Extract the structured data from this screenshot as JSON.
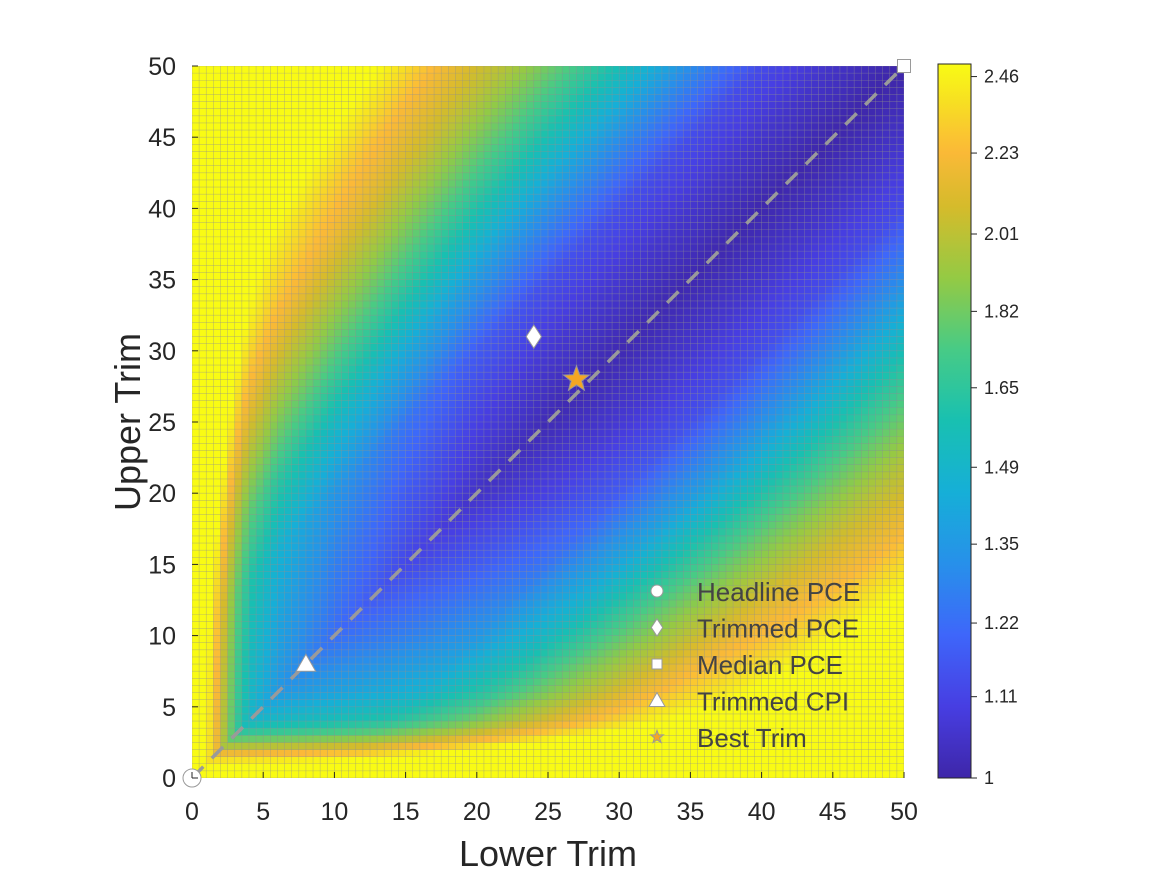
{
  "chart_data": {
    "type": "heatmap",
    "title": "",
    "xlabel": "Lower Trim",
    "ylabel": "Upper Trim",
    "xlim": [
      0,
      50
    ],
    "ylim": [
      0,
      50
    ],
    "x_ticks": [
      "0",
      "5",
      "10",
      "15",
      "20",
      "25",
      "30",
      "35",
      "40",
      "45",
      "50"
    ],
    "y_ticks": [
      "0",
      "5",
      "10",
      "15",
      "20",
      "25",
      "30",
      "35",
      "40",
      "45",
      "50"
    ],
    "grid_resolution": 0.5,
    "colormap": "parula",
    "colorbar": {
      "range": [
        1,
        2.5
      ],
      "ticks": [
        "2.46",
        "2.23",
        "2.01",
        "1.82",
        "1.65",
        "1.49",
        "1.35",
        "1.22",
        "1.11",
        "1"
      ],
      "tick_values": [
        2.46,
        2.23,
        2.01,
        1.82,
        1.65,
        1.49,
        1.35,
        1.22,
        1.11,
        1.0
      ],
      "scale": "log"
    },
    "surface_model": {
      "description": "value ≈ 1 + f(min(lower,upper)) + g(|lower-upper|), saturating at 2.46",
      "min_trim_profile": [
        [
          0,
          2.6
        ],
        [
          1,
          2.45
        ],
        [
          1.5,
          2.3
        ],
        [
          2,
          2.05
        ],
        [
          3,
          1.7
        ],
        [
          4,
          1.5
        ],
        [
          6,
          1.35
        ],
        [
          8,
          1.28
        ],
        [
          10,
          1.22
        ],
        [
          15,
          1.12
        ],
        [
          20,
          1.05
        ],
        [
          25,
          1.02
        ],
        [
          50,
          1.0
        ]
      ],
      "difference_profile": [
        [
          0,
          0
        ],
        [
          5,
          0.05
        ],
        [
          10,
          0.12
        ],
        [
          15,
          0.3
        ],
        [
          20,
          0.55
        ],
        [
          24,
          0.75
        ],
        [
          28,
          0.95
        ],
        [
          32,
          1.1
        ],
        [
          36,
          1.3
        ],
        [
          40,
          1.5
        ],
        [
          50,
          1.6
        ]
      ]
    },
    "diagonal_line": {
      "from": [
        0,
        0
      ],
      "to": [
        50,
        50
      ],
      "style": "dashed",
      "color": "#999999"
    },
    "markers": [
      {
        "name": "Headline PCE",
        "shape": "circle",
        "x": 0,
        "y": 0,
        "color": "#ffffff"
      },
      {
        "name": "Trimmed PCE",
        "shape": "diamond",
        "x": 24,
        "y": 31,
        "color": "#ffffff"
      },
      {
        "name": "Median PCE",
        "shape": "square",
        "x": 50,
        "y": 50,
        "color": "#ffffff"
      },
      {
        "name": "Trimmed CPI",
        "shape": "triangle",
        "x": 8,
        "y": 8,
        "color": "#ffffff"
      },
      {
        "name": "Best Trim",
        "shape": "star",
        "x": 27,
        "y": 28,
        "color": "#f5a623"
      }
    ],
    "legend_position": "bottom-right"
  }
}
